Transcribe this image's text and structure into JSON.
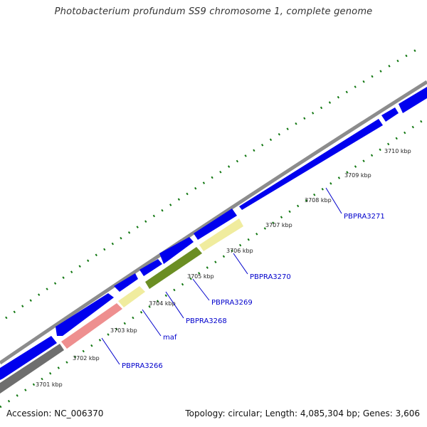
{
  "title": "Photobacterium profundum SS9 chromosome 1, complete genome",
  "footer": {
    "accession": "Accession: NC_006370",
    "summary": "Topology: circular; Length: 4,085,304 bp; Genes: 3,606"
  },
  "colors": {
    "backbone": "#8c8c8c",
    "forward_cds": "#0000ee",
    "tick_dots": "#117711",
    "gene_label": "#0000cc",
    "gene_grey": "#6e6e6e",
    "gene_pink": "#ee8f8f",
    "gene_yellow": "#f0ec9e",
    "gene_olive": "#6b8e23"
  },
  "kbp_labels": [
    "3701 kbp",
    "3702 kbp",
    "3703 kbp",
    "3704 kbp",
    "3705 kbp",
    "3706 kbp",
    "3707 kbp",
    "3708 kbp",
    "3709 kbp",
    "3710 kbp"
  ],
  "gene_labels": [
    "PBPRA3266",
    "maf",
    "PBPRA3268",
    "PBPRA3269",
    "PBPRA3270",
    "PBPRA3271"
  ]
}
